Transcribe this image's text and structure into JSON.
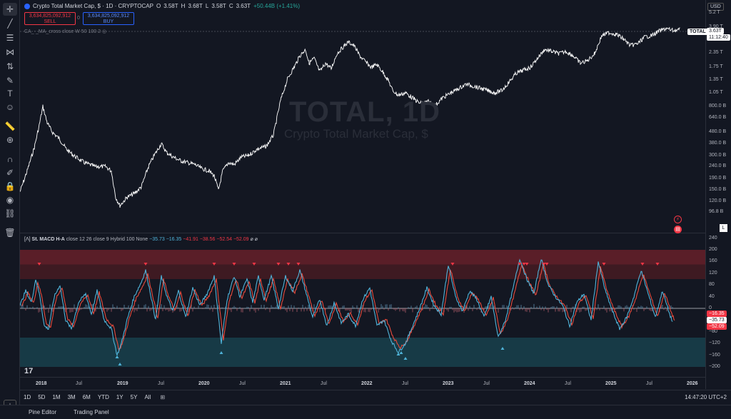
{
  "toolbar": {
    "tools": [
      "crosshair-icon",
      "trend-line-icon",
      "fib-icon",
      "pattern-icon",
      "measure-icon",
      "brush-icon",
      "text-icon",
      "emoji-icon",
      "ruler-icon",
      "zoom-icon",
      "magnet-icon",
      "lock-drawing-icon",
      "lock-icon",
      "eye-icon",
      "link-icon",
      "trash-icon"
    ]
  },
  "header": {
    "symbol": "Crypto Total Market Cap, $ · 1D · CRYPTOCAP",
    "o_label": "O",
    "o": "3.58T",
    "h_label": "H",
    "h": "3.68T",
    "l_label": "L",
    "l": "3.58T",
    "c_label": "C",
    "c": "3.63T",
    "change": "+50.44B (+1.41%)"
  },
  "trade": {
    "sell_price": "3,634,825,092,912",
    "sell_label": "SELL",
    "spread": "0",
    "buy_price": "3,634,825,092,912",
    "buy_label": "BUY"
  },
  "indicator_main": {
    "legend": "CA_-_MA_cross close W 50 100 2"
  },
  "watermark": {
    "title": "TOTAL, 1D",
    "subtitle": "Crypto Total Market Cap, $"
  },
  "price_axis": {
    "currency": "USD",
    "labels": [
      "5.2 T",
      "3.90 T",
      "2.35 T",
      "1.75 T",
      "1.35 T",
      "1.05 T",
      "800.0 B",
      "640.0 B",
      "480.0 B",
      "380.0 B",
      "300.0 B",
      "240.0 B",
      "190.0 B",
      "150.0 B",
      "120.0 B",
      "96.8 B"
    ],
    "label_values": [
      5.2,
      3.9,
      2.35,
      1.75,
      1.35,
      1.05,
      0.8,
      0.64,
      0.48,
      0.38,
      0.3,
      0.24,
      0.19,
      0.15,
      0.12,
      0.0968
    ],
    "symbol_tag": "TOTAL",
    "last_price": "3.63T",
    "countdown": "11:12:40"
  },
  "macd": {
    "legend_name": "St. MACD H-A",
    "legend_params": "close 12 26 close 9 Hybrid 100 None",
    "v1": "−35.73",
    "v2": "−16.35",
    "v3": "−41.91",
    "v4": "−38.56",
    "v5": "−52.54",
    "v6": "−52.09",
    "axis_labels": [
      "240",
      "200",
      "160",
      "120",
      "80",
      "40",
      "0",
      "−40",
      "−80",
      "−120",
      "−160",
      "−200"
    ],
    "axis_values": [
      240,
      200,
      160,
      120,
      80,
      40,
      0,
      -40,
      -80,
      -120,
      -160,
      -200
    ],
    "tags": [
      "−16.35",
      "−35.73",
      "−52.09"
    ],
    "upper_zone": [
      100,
      200
    ],
    "lower_zone": [
      -100,
      -200
    ]
  },
  "time_axis": {
    "labels": [
      "2018",
      "Jul",
      "2019",
      "Jul",
      "2020",
      "Jul",
      "2021",
      "Jul",
      "2022",
      "Jul",
      "2023",
      "Jul",
      "2024",
      "Jul",
      "2025",
      "Jul",
      "2026"
    ]
  },
  "ranges": [
    "1D",
    "5D",
    "1M",
    "3M",
    "6M",
    "YTD",
    "1Y",
    "5Y",
    "All"
  ],
  "clock": "14:47:20 UTC+2",
  "bottom_tabs": [
    "Pine Editor",
    "Trading Panel"
  ],
  "colors": {
    "bg": "#131722",
    "price_line": "#ffffff",
    "macd_blue": "#4fb3d9",
    "macd_red": "#f23645",
    "upper_zone": "#4a1c24",
    "lower_zone": "#1a3a45",
    "accent": "#2962ff"
  }
}
